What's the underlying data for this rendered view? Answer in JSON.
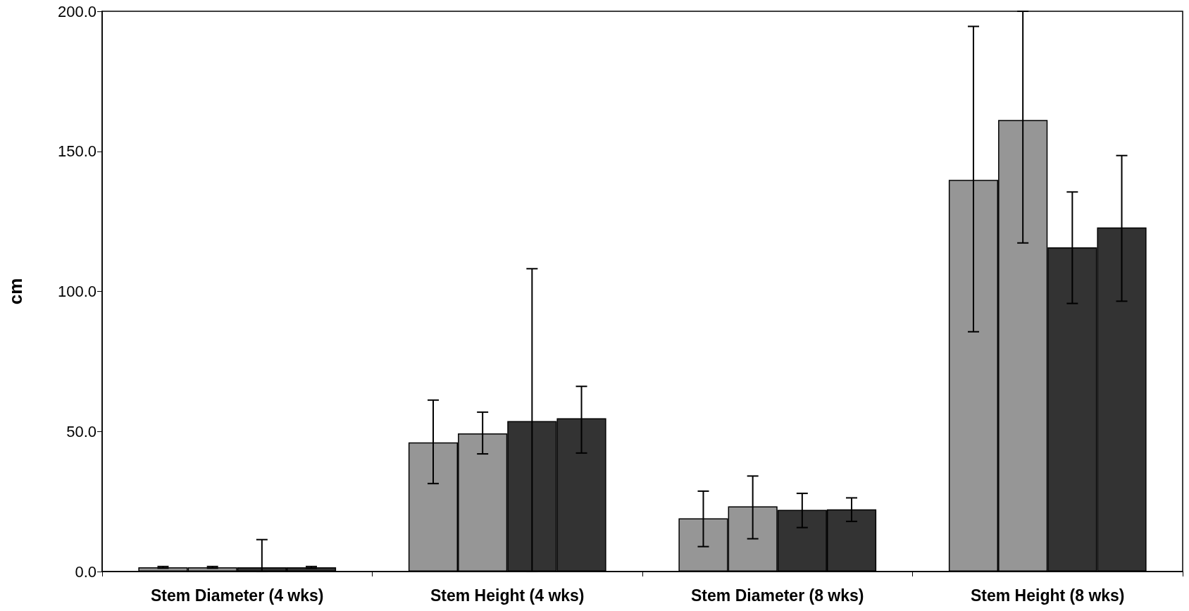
{
  "chart_data": {
    "type": "bar",
    "ylabel": "cm",
    "categories": [
      "Stem Diameter (4 wks)",
      "Stem Height (4 wks)",
      "Stem Diameter (8 wks)",
      "Stem Height (8 wks)"
    ],
    "series": [
      {
        "color": "#969696",
        "values": [
          1.5,
          46.1,
          19.0,
          139.8
        ],
        "errors": [
          0.3,
          [
            31.4,
            61.2
          ],
          [
            8.9,
            28.7
          ],
          [
            85.6,
            194.6
          ]
        ]
      },
      {
        "color": "#969696",
        "values": [
          1.5,
          49.3,
          23.3,
          161.2
        ],
        "errors": [
          0.3,
          [
            42.0,
            56.9
          ],
          [
            11.7,
            34.1
          ],
          [
            117.3,
            200.0
          ]
        ]
      },
      {
        "color": "#333333",
        "values": [
          1.5,
          53.7,
          22.0,
          115.7
        ],
        "errors": [
          [
            0,
            11.4
          ],
          [
            0,
            108.1
          ],
          [
            15.7,
            27.9
          ],
          [
            95.7,
            135.5
          ]
        ]
      },
      {
        "color": "#333333",
        "values": [
          1.5,
          54.7,
          22.2,
          122.8
        ],
        "errors": [
          0.3,
          [
            42.3,
            66.1
          ],
          [
            17.9,
            26.3
          ],
          [
            96.5,
            148.5
          ]
        ]
      }
    ],
    "ylim": [
      0,
      200
    ],
    "yticks": [
      {
        "value": 0,
        "label": "0.0"
      },
      {
        "value": 50,
        "label": "50.0"
      },
      {
        "value": 100,
        "label": "100.0"
      },
      {
        "value": 150,
        "label": "150.0"
      },
      {
        "value": 200,
        "label": "200.0"
      }
    ],
    "grid": false
  }
}
